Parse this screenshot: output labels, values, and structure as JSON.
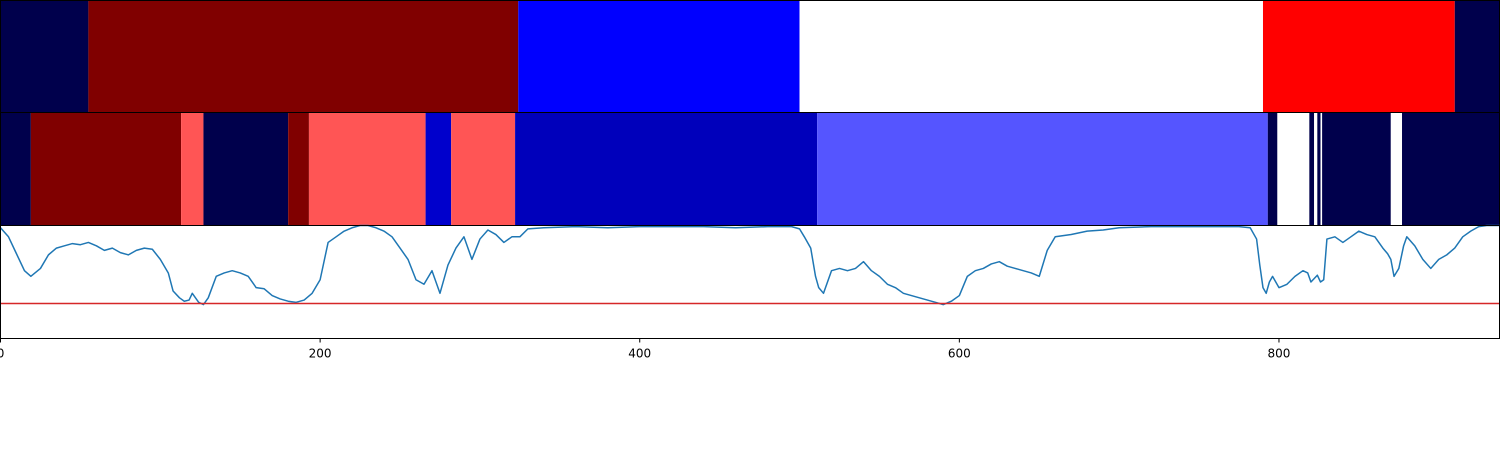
{
  "chart_data": [
    {
      "type": "segments",
      "x_range": [
        0,
        938
      ],
      "segments": [
        {
          "start": 0,
          "end": 55,
          "color": "#00004c"
        },
        {
          "start": 55,
          "end": 324,
          "color": "#800000"
        },
        {
          "start": 324,
          "end": 500,
          "color": "#0000ff"
        },
        {
          "start": 500,
          "end": 790,
          "color": "#ffffff"
        },
        {
          "start": 790,
          "end": 910,
          "color": "#ff0000"
        },
        {
          "start": 910,
          "end": 938,
          "color": "#00004c"
        }
      ]
    },
    {
      "type": "segments",
      "x_range": [
        0,
        938
      ],
      "segments": [
        {
          "start": 0,
          "end": 19,
          "color": "#00004c"
        },
        {
          "start": 19,
          "end": 113,
          "color": "#800000"
        },
        {
          "start": 113,
          "end": 127,
          "color": "#ff5555"
        },
        {
          "start": 127,
          "end": 180,
          "color": "#00004c"
        },
        {
          "start": 180,
          "end": 193,
          "color": "#800000"
        },
        {
          "start": 193,
          "end": 266,
          "color": "#ff5555"
        },
        {
          "start": 266,
          "end": 282,
          "color": "#0000cc"
        },
        {
          "start": 282,
          "end": 322,
          "color": "#ff5555"
        },
        {
          "start": 322,
          "end": 511,
          "color": "#0000bb"
        },
        {
          "start": 511,
          "end": 793,
          "color": "#5555ff"
        },
        {
          "start": 793,
          "end": 799,
          "color": "#00004c"
        },
        {
          "start": 799,
          "end": 819,
          "color": "#ffffff"
        },
        {
          "start": 819,
          "end": 822,
          "color": "#00004c"
        },
        {
          "start": 822,
          "end": 824,
          "color": "#ffffff"
        },
        {
          "start": 824,
          "end": 826,
          "color": "#00004c"
        },
        {
          "start": 826,
          "end": 827,
          "color": "#ffffff"
        },
        {
          "start": 827,
          "end": 870,
          "color": "#00004c"
        },
        {
          "start": 870,
          "end": 877,
          "color": "#ffffff"
        },
        {
          "start": 877,
          "end": 938,
          "color": "#00004c"
        }
      ]
    },
    {
      "type": "line",
      "x_range": [
        0,
        938
      ],
      "y_range": [
        0,
        1
      ],
      "line_color": "#1f77b4",
      "threshold": 0.31,
      "threshold_color": "#d62728",
      "x_ticks": [
        {
          "value": 0,
          "label": "0"
        },
        {
          "value": 200,
          "label": "200"
        },
        {
          "value": 400,
          "label": "400"
        },
        {
          "value": 600,
          "label": "600"
        },
        {
          "value": 800,
          "label": "800"
        }
      ],
      "x": [
        0,
        5,
        10,
        15,
        19,
        25,
        30,
        35,
        40,
        45,
        50,
        55,
        60,
        65,
        70,
        75,
        80,
        85,
        90,
        95,
        100,
        105,
        108,
        112,
        115,
        118,
        120,
        124,
        127,
        130,
        135,
        140,
        145,
        150,
        155,
        160,
        165,
        170,
        175,
        180,
        185,
        190,
        195,
        200,
        205,
        210,
        215,
        220,
        225,
        230,
        235,
        240,
        245,
        250,
        255,
        260,
        265,
        270,
        275,
        280,
        285,
        290,
        295,
        300,
        305,
        310,
        315,
        320,
        325,
        330,
        340,
        360,
        380,
        400,
        420,
        440,
        460,
        480,
        495,
        500,
        503,
        507,
        510,
        512,
        515,
        520,
        525,
        530,
        535,
        540,
        545,
        550,
        555,
        560,
        565,
        570,
        575,
        580,
        585,
        590,
        595,
        600,
        605,
        610,
        615,
        620,
        625,
        630,
        635,
        640,
        645,
        650,
        655,
        660,
        670,
        680,
        690,
        700,
        720,
        740,
        760,
        775,
        782,
        786,
        788,
        790,
        792,
        794,
        796,
        800,
        805,
        810,
        815,
        818,
        820,
        824,
        826,
        828,
        830,
        835,
        840,
        845,
        850,
        855,
        860,
        865,
        868,
        870,
        872,
        875,
        878,
        880,
        885,
        890,
        895,
        900,
        905,
        910,
        915,
        920,
        925,
        930,
        938
      ],
      "y": [
        0.98,
        0.9,
        0.75,
        0.6,
        0.55,
        0.62,
        0.74,
        0.8,
        0.82,
        0.84,
        0.83,
        0.85,
        0.82,
        0.78,
        0.8,
        0.76,
        0.74,
        0.78,
        0.8,
        0.79,
        0.7,
        0.58,
        0.42,
        0.36,
        0.33,
        0.34,
        0.4,
        0.32,
        0.3,
        0.36,
        0.55,
        0.58,
        0.6,
        0.58,
        0.55,
        0.45,
        0.44,
        0.38,
        0.35,
        0.33,
        0.32,
        0.34,
        0.4,
        0.52,
        0.85,
        0.9,
        0.95,
        0.98,
        1.0,
        1.0,
        0.98,
        0.95,
        0.9,
        0.8,
        0.7,
        0.52,
        0.48,
        0.6,
        0.4,
        0.65,
        0.8,
        0.9,
        0.7,
        0.88,
        0.96,
        0.92,
        0.85,
        0.9,
        0.9,
        0.97,
        0.98,
        0.99,
        0.98,
        0.99,
        0.99,
        0.99,
        0.98,
        0.99,
        0.99,
        0.97,
        0.9,
        0.8,
        0.55,
        0.45,
        0.4,
        0.6,
        0.62,
        0.6,
        0.62,
        0.68,
        0.6,
        0.55,
        0.48,
        0.45,
        0.4,
        0.38,
        0.36,
        0.34,
        0.32,
        0.3,
        0.33,
        0.38,
        0.55,
        0.6,
        0.62,
        0.66,
        0.68,
        0.64,
        0.62,
        0.6,
        0.58,
        0.55,
        0.78,
        0.9,
        0.92,
        0.95,
        0.96,
        0.98,
        0.99,
        0.99,
        0.99,
        0.99,
        0.98,
        0.88,
        0.65,
        0.45,
        0.4,
        0.5,
        0.55,
        0.45,
        0.48,
        0.55,
        0.6,
        0.58,
        0.5,
        0.56,
        0.5,
        0.52,
        0.88,
        0.9,
        0.85,
        0.9,
        0.95,
        0.92,
        0.9,
        0.8,
        0.75,
        0.7,
        0.55,
        0.62,
        0.82,
        0.9,
        0.82,
        0.7,
        0.62,
        0.7,
        0.74,
        0.8,
        0.9,
        0.95,
        0.99,
        1.0,
        1.0
      ]
    }
  ]
}
